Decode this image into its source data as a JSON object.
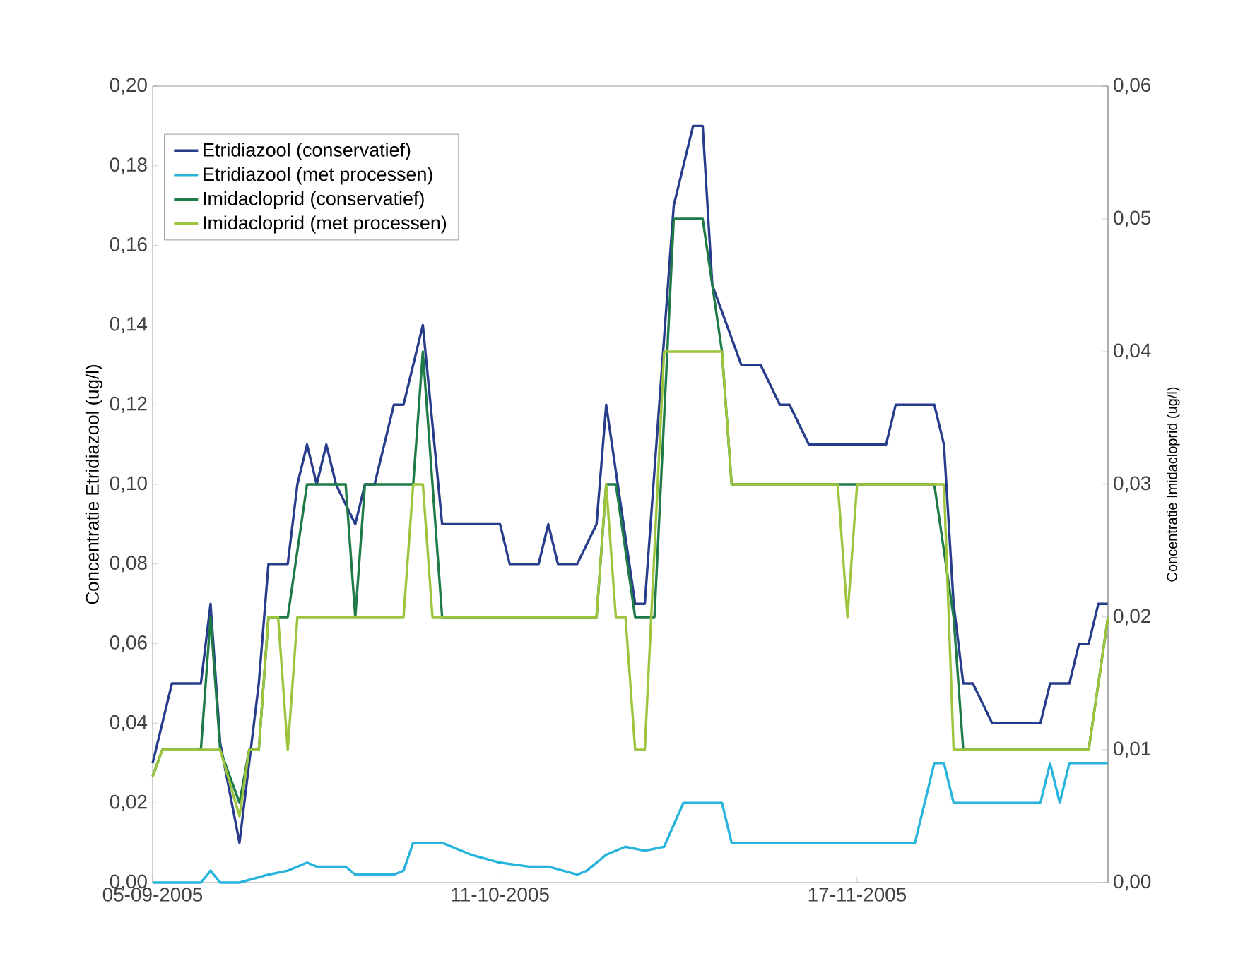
{
  "chart_data": {
    "type": "line",
    "ylabel": "Concentratie Etridiazool (ug/l)",
    "y2label": "Concentratie Imidacloprid (ug/l)",
    "xlim": [
      "2005-09-05",
      "2005-12-13"
    ],
    "xticks": [
      {
        "value": "2005-09-05",
        "label": "05-09-2005"
      },
      {
        "value": "2005-10-11",
        "label": "11-10-2005"
      },
      {
        "value": "2005-11-17",
        "label": "17-11-2005"
      }
    ],
    "ylim": [
      0,
      0.2
    ],
    "yticks": [
      {
        "value": 0,
        "label": "0,00"
      },
      {
        "value": 0.02,
        "label": "0,02"
      },
      {
        "value": 0.04,
        "label": "0,04"
      },
      {
        "value": 0.06,
        "label": "0,06"
      },
      {
        "value": 0.08,
        "label": "0,08"
      },
      {
        "value": 0.1,
        "label": "0,10"
      },
      {
        "value": 0.12,
        "label": "0,12"
      },
      {
        "value": 0.14,
        "label": "0,14"
      },
      {
        "value": 0.16,
        "label": "0,16"
      },
      {
        "value": 0.18,
        "label": "0,18"
      },
      {
        "value": 0.2,
        "label": "0,20"
      }
    ],
    "y2lim": [
      0,
      0.06
    ],
    "y2ticks": [
      {
        "value": 0,
        "label": "0,00"
      },
      {
        "value": 0.01,
        "label": "0,01"
      },
      {
        "value": 0.02,
        "label": "0,02"
      },
      {
        "value": 0.03,
        "label": "0,03"
      },
      {
        "value": 0.04,
        "label": "0,04"
      },
      {
        "value": 0.05,
        "label": "0,05"
      },
      {
        "value": 0.06,
        "label": "0,06"
      }
    ],
    "legend": "top left",
    "series": [
      {
        "name": "Etridiazool (conservatief)",
        "color": "#283c8c",
        "x": [
          "2005-09-05",
          "2005-09-06",
          "2005-09-07",
          "2005-09-10",
          "2005-09-11",
          "2005-09-12",
          "2005-09-14",
          "2005-09-15",
          "2005-09-16",
          "2005-09-17",
          "2005-09-19",
          "2005-09-20",
          "2005-09-21",
          "2005-09-22",
          "2005-09-23",
          "2005-09-24",
          "2005-09-26",
          "2005-09-27",
          "2005-09-28",
          "2005-09-30",
          "2005-10-01",
          "2005-10-03",
          "2005-10-05",
          "2005-10-11",
          "2005-10-12",
          "2005-10-15",
          "2005-10-16",
          "2005-10-17",
          "2005-10-19",
          "2005-10-21",
          "2005-10-22",
          "2005-10-25",
          "2005-10-26",
          "2005-10-29",
          "2005-10-30",
          "2005-10-31",
          "2005-11-01",
          "2005-11-02",
          "2005-11-05",
          "2005-11-07",
          "2005-11-09",
          "2005-11-10",
          "2005-11-12",
          "2005-11-20",
          "2005-11-21",
          "2005-11-25",
          "2005-11-26",
          "2005-11-27",
          "2005-11-28",
          "2005-11-29",
          "2005-12-01",
          "2005-12-06",
          "2005-12-07",
          "2005-12-09",
          "2005-12-10",
          "2005-12-11",
          "2005-12-12",
          "2005-12-13"
        ],
        "values": [
          0.03,
          0.04,
          0.05,
          0.05,
          0.07,
          0.035,
          0.01,
          0.03,
          0.05,
          0.08,
          0.08,
          0.1,
          0.11,
          0.1,
          0.11,
          0.1,
          0.09,
          0.1,
          0.1,
          0.12,
          0.12,
          0.14,
          0.09,
          0.09,
          0.08,
          0.08,
          0.09,
          0.08,
          0.08,
          0.09,
          0.12,
          0.07,
          0.07,
          0.17,
          0.18,
          0.19,
          0.19,
          0.15,
          0.13,
          0.13,
          0.12,
          0.12,
          0.11,
          0.11,
          0.12,
          0.12,
          0.11,
          0.07,
          0.05,
          0.05,
          0.04,
          0.04,
          0.05,
          0.05,
          0.06,
          0.06,
          0.07,
          0.07
        ]
      },
      {
        "name": "Etridiazool (met processen)",
        "color": "#27b4dc",
        "x": [
          "2005-09-05",
          "2005-09-10",
          "2005-09-11",
          "2005-09-12",
          "2005-09-14",
          "2005-09-17",
          "2005-09-19",
          "2005-09-21",
          "2005-09-22",
          "2005-09-25",
          "2005-09-26",
          "2005-09-30",
          "2005-10-01",
          "2005-10-02",
          "2005-10-05",
          "2005-10-08",
          "2005-10-11",
          "2005-10-14",
          "2005-10-16",
          "2005-10-19",
          "2005-10-20",
          "2005-10-22",
          "2005-10-24",
          "2005-10-26",
          "2005-10-28",
          "2005-10-30",
          "2005-11-03",
          "2005-11-04",
          "2005-11-23",
          "2005-11-25",
          "2005-11-26",
          "2005-11-27",
          "2005-12-06",
          "2005-12-07",
          "2005-12-08",
          "2005-12-09",
          "2005-12-13"
        ],
        "values": [
          0,
          0,
          0.003,
          0,
          0,
          0.002,
          0.003,
          0.005,
          0.004,
          0.004,
          0.002,
          0.002,
          0.003,
          0.01,
          0.01,
          0.007,
          0.005,
          0.004,
          0.004,
          0.002,
          0.003,
          0.007,
          0.009,
          0.008,
          0.009,
          0.02,
          0.02,
          0.01,
          0.01,
          0.03,
          0.03,
          0.02,
          0.02,
          0.03,
          0.02,
          0.03,
          0.03
        ]
      },
      {
        "name": "Imidacloprid (conservatief)",
        "color": "#1e7a46",
        "axis": "y2",
        "x": [
          "2005-09-05",
          "2005-09-06",
          "2005-09-10",
          "2005-09-11",
          "2005-09-12",
          "2005-09-14",
          "2005-09-15",
          "2005-09-16",
          "2005-09-17",
          "2005-09-19",
          "2005-09-21",
          "2005-09-25",
          "2005-09-26",
          "2005-09-27",
          "2005-10-02",
          "2005-10-03",
          "2005-10-05",
          "2005-10-21",
          "2005-10-22",
          "2005-10-23",
          "2005-10-25",
          "2005-10-27",
          "2005-10-29",
          "2005-11-01",
          "2005-11-03",
          "2005-11-04",
          "2005-11-25",
          "2005-11-27",
          "2005-11-28",
          "2005-12-11",
          "2005-12-13"
        ],
        "values": [
          0.008,
          0.01,
          0.01,
          0.02,
          0.01,
          0.006,
          0.01,
          0.01,
          0.02,
          0.02,
          0.03,
          0.03,
          0.02,
          0.03,
          0.03,
          0.04,
          0.02,
          0.02,
          0.03,
          0.03,
          0.02,
          0.02,
          0.05,
          0.05,
          0.04,
          0.03,
          0.03,
          0.02,
          0.01,
          0.01,
          0.02
        ]
      },
      {
        "name": "Imidacloprid (met processen)",
        "color": "#9cc43c",
        "axis": "y2",
        "x": [
          "2005-09-05",
          "2005-09-06",
          "2005-09-10",
          "2005-09-12",
          "2005-09-14",
          "2005-09-15",
          "2005-09-16",
          "2005-09-17",
          "2005-09-18",
          "2005-09-19",
          "2005-09-20",
          "2005-10-01",
          "2005-10-02",
          "2005-10-03",
          "2005-10-04",
          "2005-10-21",
          "2005-10-22",
          "2005-10-23",
          "2005-10-24",
          "2005-10-25",
          "2005-10-26",
          "2005-10-28",
          "2005-11-03",
          "2005-11-04",
          "2005-11-15",
          "2005-11-16",
          "2005-11-17",
          "2005-11-26",
          "2005-11-27",
          "2005-12-11",
          "2005-12-13"
        ],
        "values": [
          0.008,
          0.01,
          0.01,
          0.01,
          0.005,
          0.01,
          0.01,
          0.02,
          0.02,
          0.01,
          0.02,
          0.02,
          0.03,
          0.03,
          0.02,
          0.02,
          0.03,
          0.02,
          0.02,
          0.01,
          0.01,
          0.04,
          0.04,
          0.03,
          0.03,
          0.02,
          0.03,
          0.03,
          0.01,
          0.01,
          0.02
        ]
      }
    ]
  }
}
